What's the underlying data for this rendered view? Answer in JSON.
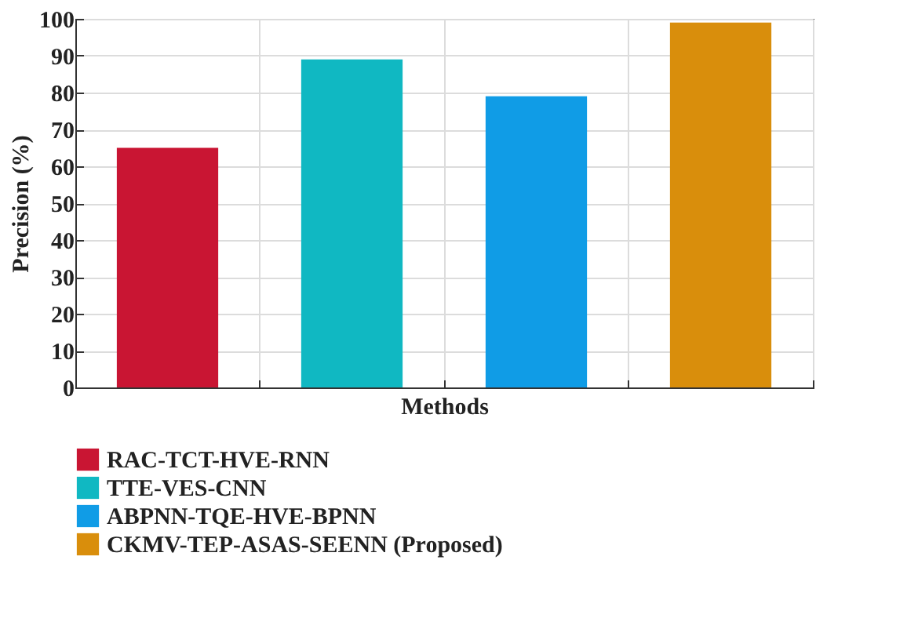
{
  "chart_data": {
    "type": "bar",
    "xlabel": "Methods",
    "ylabel": "Precision (%)",
    "categories": [
      null,
      null,
      null,
      null
    ],
    "series": [
      {
        "name": "RAC-TCT-HVE-RNN",
        "color": "#c91533",
        "values": [
          65,
          null,
          null,
          null
        ]
      },
      {
        "name": "TTE-VES-CNN",
        "color": "#10b8c2",
        "values": [
          null,
          89,
          null,
          null
        ]
      },
      {
        "name": "ABPNN-TQE-HVE-BPNN",
        "color": "#109ce6",
        "values": [
          null,
          null,
          79,
          null
        ]
      },
      {
        "name": "CKMV-TEP-ASAS-SEENN (Proposed)",
        "color": "#d98e0c",
        "values": [
          null,
          null,
          null,
          99
        ]
      }
    ],
    "ylim": [
      0,
      100
    ],
    "yticks": [
      0,
      10,
      20,
      30,
      40,
      50,
      60,
      70,
      80,
      90,
      100
    ],
    "grid": true,
    "legend": "bottom"
  }
}
